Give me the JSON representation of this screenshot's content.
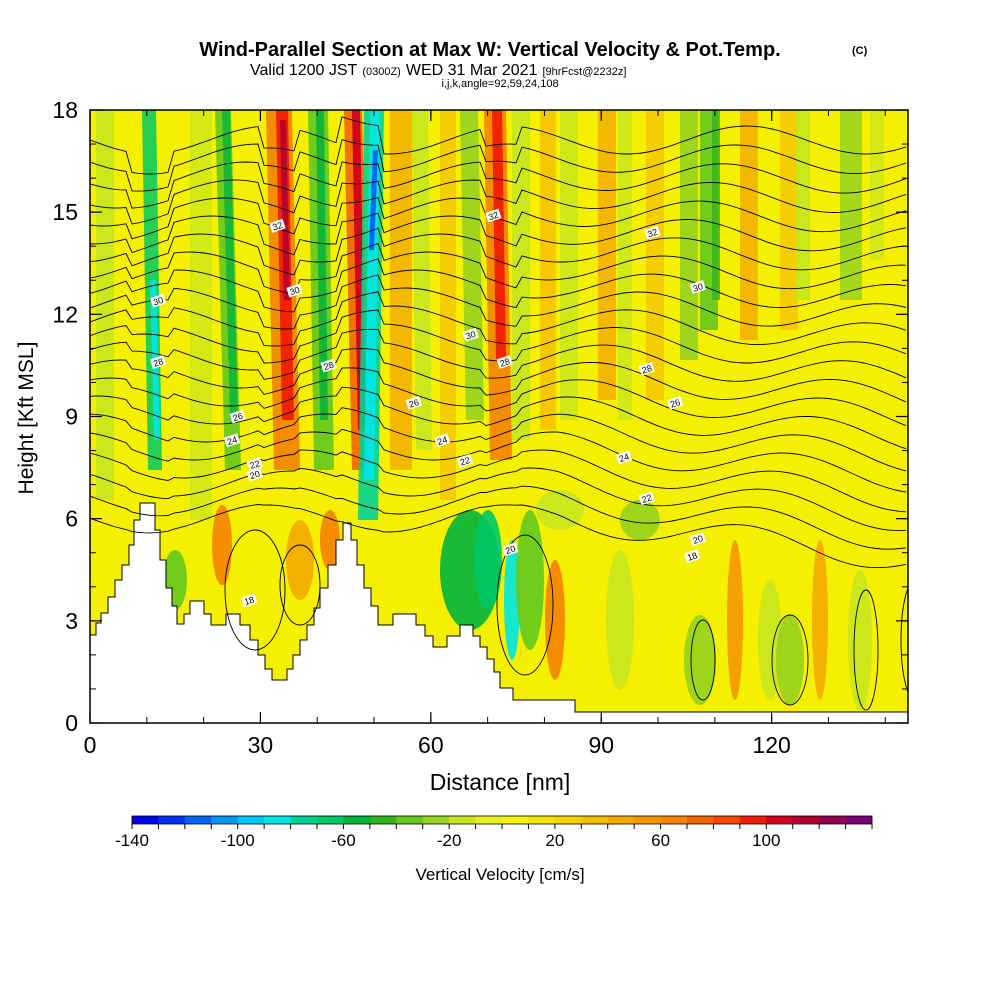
{
  "chart_data": {
    "type": "heatmap",
    "title_main": "Wind-Parallel Section at Max W: Vertical Velocity & Pot.Temp.",
    "title_mark": "(C)",
    "subtitle_valid": "Valid 1200 JST",
    "subtitle_utc": "(0300Z)",
    "subtitle_date": "WED 31 Mar 2021",
    "subtitle_fcst": "[9hrFcst@2232z]",
    "subtitle_ijk": "i,j,k,angle=92,59,24,108",
    "xlabel": "Distance [nm]",
    "ylabel": "Height [Kft MSL]",
    "xlim": [
      0,
      144
    ],
    "ylim": [
      0,
      18
    ],
    "x_ticks": [
      0,
      30,
      60,
      90,
      120
    ],
    "x_tick_labels": [
      "0",
      "30",
      "60",
      "90",
      "120"
    ],
    "y_ticks": [
      0,
      3,
      6,
      9,
      12,
      15,
      18
    ],
    "y_tick_labels": [
      "0",
      "3",
      "6",
      "9",
      "12",
      "15",
      "18"
    ],
    "colorbar": {
      "label": "Vertical Velocity [cm/s]",
      "min": -140,
      "max": 140,
      "step": 10,
      "tick_labels": [
        "-140",
        "-100",
        "-60",
        "-20",
        "20",
        "60",
        "100"
      ],
      "colors": [
        "#0000f0",
        "#0032f5",
        "#0064f5",
        "#0096f5",
        "#00c8f5",
        "#00e6e6",
        "#00d296",
        "#00c864",
        "#00b43c",
        "#32b41e",
        "#64c81e",
        "#96d21e",
        "#c8e61e",
        "#e6f01e",
        "#f5f500",
        "#f5e600",
        "#f5d200",
        "#f5be00",
        "#f5aa00",
        "#f59600",
        "#f58200",
        "#f56400",
        "#f54600",
        "#f01e00",
        "#d2001e",
        "#b40032",
        "#960050",
        "#780078"
      ]
    },
    "theta_contour_labels": [
      {
        "x": 33,
        "z": 14.6,
        "label": "32"
      },
      {
        "x": 71,
        "z": 14.9,
        "label": "32"
      },
      {
        "x": 99,
        "z": 14.4,
        "label": "32"
      },
      {
        "x": 12,
        "z": 12.4,
        "label": "30"
      },
      {
        "x": 36,
        "z": 12.7,
        "label": "30"
      },
      {
        "x": 67,
        "z": 11.4,
        "label": "30"
      },
      {
        "x": 107,
        "z": 12.8,
        "label": "30"
      },
      {
        "x": 12,
        "z": 10.6,
        "label": "28"
      },
      {
        "x": 42,
        "z": 10.5,
        "label": "28"
      },
      {
        "x": 73,
        "z": 10.6,
        "label": "28"
      },
      {
        "x": 98,
        "z": 10.4,
        "label": "28"
      },
      {
        "x": 26,
        "z": 9.0,
        "label": "26"
      },
      {
        "x": 57,
        "z": 9.4,
        "label": "26"
      },
      {
        "x": 103,
        "z": 9.4,
        "label": "26"
      },
      {
        "x": 25,
        "z": 8.3,
        "label": "24"
      },
      {
        "x": 62,
        "z": 8.3,
        "label": "24"
      },
      {
        "x": 94,
        "z": 7.8,
        "label": "24"
      },
      {
        "x": 29,
        "z": 7.6,
        "label": "22"
      },
      {
        "x": 66,
        "z": 7.7,
        "label": "22"
      },
      {
        "x": 98,
        "z": 6.6,
        "label": "22"
      },
      {
        "x": 29,
        "z": 7.3,
        "label": "20"
      },
      {
        "x": 74,
        "z": 5.1,
        "label": "20"
      },
      {
        "x": 107,
        "z": 5.4,
        "label": "20"
      },
      {
        "x": 28,
        "z": 3.6,
        "label": "18"
      },
      {
        "x": 106,
        "z": 4.9,
        "label": "18"
      }
    ]
  }
}
